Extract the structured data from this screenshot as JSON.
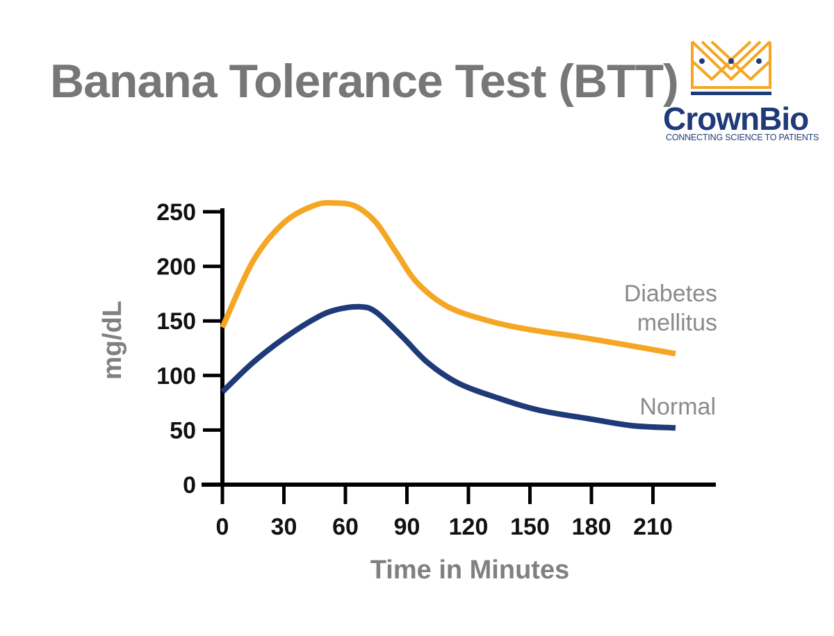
{
  "header": {
    "title": "Banana Tolerance Test (BTT)"
  },
  "logo": {
    "brand": "CrownBio",
    "tagline": "CONNECTING SCIENCE TO PATIENTS",
    "colors": {
      "crown": "#f5a623",
      "text": "#1e3a78"
    }
  },
  "chart_data": {
    "type": "line",
    "xlabel": "Time in Minutes",
    "ylabel": "mg/dL",
    "xlim": [
      0,
      240
    ],
    "ylim": [
      0,
      250
    ],
    "x_ticks": [
      0,
      30,
      60,
      90,
      120,
      150,
      180,
      210
    ],
    "y_ticks": [
      0,
      50,
      100,
      150,
      200,
      250
    ],
    "grid": false,
    "legend": "inline labels at right end of lines",
    "series": [
      {
        "name": "Diabetes mellitus",
        "label_lines": [
          "Diabetes",
          "mellitus"
        ],
        "color": "#f5a623",
        "points": [
          [
            0,
            144
          ],
          [
            15,
            205
          ],
          [
            30,
            240
          ],
          [
            45,
            256
          ],
          [
            55,
            258
          ],
          [
            65,
            255
          ],
          [
            75,
            240
          ],
          [
            85,
            212
          ],
          [
            95,
            185
          ],
          [
            110,
            163
          ],
          [
            130,
            150
          ],
          [
            150,
            142
          ],
          [
            175,
            135
          ],
          [
            200,
            127
          ],
          [
            221,
            120
          ]
        ]
      },
      {
        "name": "Normal",
        "label_lines": [
          "Normal"
        ],
        "color": "#1e3a78",
        "points": [
          [
            0,
            85
          ],
          [
            15,
            112
          ],
          [
            30,
            134
          ],
          [
            45,
            152
          ],
          [
            55,
            160
          ],
          [
            67,
            163
          ],
          [
            75,
            158
          ],
          [
            88,
            135
          ],
          [
            100,
            112
          ],
          [
            115,
            93
          ],
          [
            135,
            79
          ],
          [
            155,
            68
          ],
          [
            180,
            60
          ],
          [
            200,
            54
          ],
          [
            221,
            52
          ]
        ]
      }
    ]
  }
}
